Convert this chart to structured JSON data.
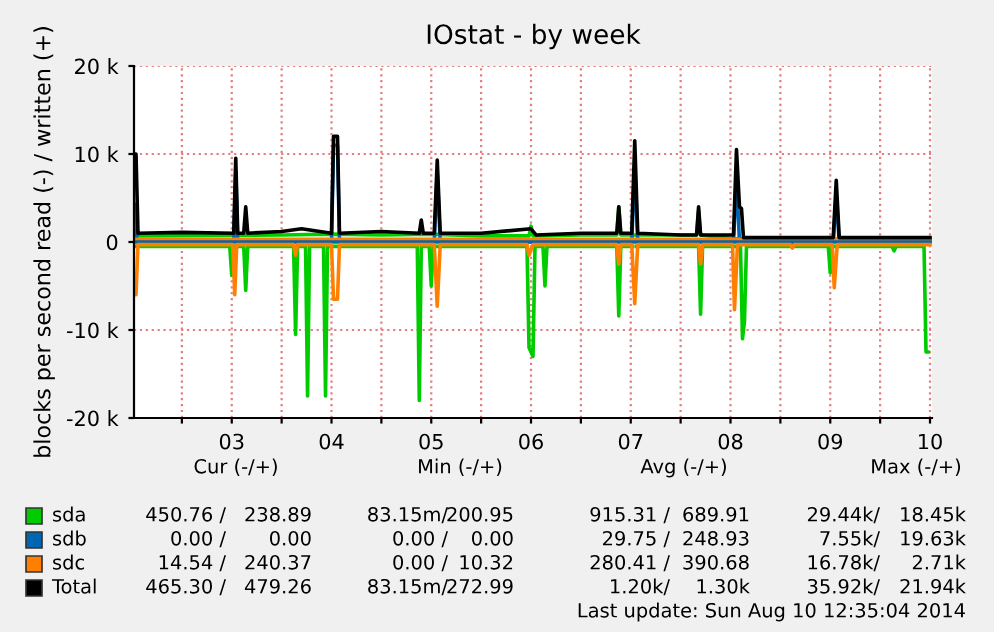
{
  "chart_data": {
    "type": "line",
    "title": "IOstat - by week",
    "ylabel": "blocks per second read (-) / written (+)",
    "xlim": [
      2.52,
      10.52
    ],
    "ylim": [
      -20000,
      20000
    ],
    "xticks": [
      {
        "value": 3,
        "label": null
      },
      {
        "value": 3.5,
        "label": "03"
      },
      {
        "value": 4,
        "label": null
      },
      {
        "value": 4.5,
        "label": "04"
      },
      {
        "value": 5,
        "label": null
      },
      {
        "value": 5.5,
        "label": "05"
      },
      {
        "value": 6,
        "label": null
      },
      {
        "value": 6.5,
        "label": "06"
      },
      {
        "value": 7,
        "label": null
      },
      {
        "value": 7.5,
        "label": "07"
      },
      {
        "value": 8,
        "label": null
      },
      {
        "value": 8.5,
        "label": "08"
      },
      {
        "value": 9,
        "label": null
      },
      {
        "value": 9.5,
        "label": "09"
      },
      {
        "value": 10,
        "label": null
      },
      {
        "value": 10.5,
        "label": "10"
      }
    ],
    "yticks": [
      {
        "value": -20000,
        "label": "-20 k"
      },
      {
        "value": -10000,
        "label": "-10 k"
      },
      0,
      {
        "value": 10000,
        "label": "10 k"
      },
      {
        "value": 20000,
        "label": "20 k"
      }
    ],
    "grid": true,
    "legend": "bottom",
    "series": [
      {
        "name": "sda",
        "color": "#00cc00",
        "x": [
          2.52,
          4.0,
          4.5,
          5.0,
          5.5,
          6.0,
          6.48,
          6.5,
          6.52,
          7.0,
          7.36,
          7.38,
          7.4,
          8.0,
          8.16,
          8.18,
          8.2,
          8.5,
          9.0,
          9.5,
          10.0,
          10.5
        ],
        "values": [
          700,
          800,
          900,
          800,
          900,
          700,
          700,
          1800,
          700,
          800,
          800,
          4000,
          800,
          800,
          800,
          3500,
          800,
          400,
          300,
          300,
          300,
          300
        ]
      },
      {
        "name": "sdb",
        "color": "#0066b3",
        "x": [
          2.52,
          2.53,
          2.55,
          3.52,
          3.54,
          3.56,
          4.5,
          4.52,
          4.56,
          4.58,
          5.53,
          5.56,
          5.59,
          7.51,
          7.54,
          7.57,
          8.53,
          8.56,
          8.59,
          9.53,
          9.56,
          9.59,
          10.5
        ],
        "values": [
          4300,
          4300,
          0,
          0,
          8000,
          0,
          0,
          11000,
          11000,
          0,
          0,
          8000,
          0,
          0,
          9000,
          0,
          0,
          7500,
          0,
          0,
          5500,
          0,
          0
        ]
      },
      {
        "name": "sdc",
        "color": "#ff8000",
        "x": [
          2.52,
          10.5
        ],
        "values": [
          300,
          300
        ]
      },
      {
        "name": "Total",
        "color": "#000000",
        "x": [
          2.52,
          2.54,
          2.56,
          3.0,
          3.52,
          3.54,
          3.56,
          3.62,
          3.64,
          3.66,
          4.0,
          4.2,
          4.5,
          4.52,
          4.56,
          4.58,
          5.0,
          5.38,
          5.4,
          5.42,
          5.53,
          5.56,
          5.59,
          6.0,
          6.5,
          6.55,
          7.0,
          7.36,
          7.38,
          7.4,
          7.51,
          7.54,
          7.57,
          8.0,
          8.16,
          8.18,
          8.2,
          8.53,
          8.56,
          8.59,
          8.61,
          8.63,
          9.0,
          9.53,
          9.56,
          9.59,
          10.0,
          10.5
        ],
        "values": [
          10000,
          10000,
          1000,
          1100,
          1000,
          9500,
          1000,
          1000,
          4000,
          1000,
          1200,
          1500,
          1000,
          12000,
          12000,
          1000,
          1200,
          1000,
          2500,
          1000,
          1000,
          9300,
          1000,
          1000,
          1500,
          800,
          1000,
          1000,
          4000,
          1000,
          1000,
          11500,
          1000,
          800,
          800,
          4000,
          800,
          800,
          10500,
          4000,
          3800,
          500,
          500,
          500,
          7000,
          500,
          500,
          500
        ]
      },
      {
        "color": "#00cc00",
        "x": [
          2.52,
          3.48,
          3.5,
          3.52,
          3.62,
          3.64,
          3.66,
          4.12,
          4.14,
          4.16,
          4.24,
          4.26,
          4.28,
          4.42,
          4.44,
          4.46,
          5.36,
          5.38,
          5.4,
          5.48,
          5.5,
          5.52,
          6.46,
          6.48,
          6.52,
          6.54,
          6.62,
          6.64,
          6.66,
          7.36,
          7.38,
          7.4,
          7.52,
          7.54,
          7.56,
          8.18,
          8.2,
          8.22,
          8.6,
          8.62,
          8.64,
          8.66,
          9.48,
          9.5,
          9.52,
          10.12,
          10.14,
          10.16,
          10.44,
          10.46,
          10.48
        ],
        "values": [
          -500,
          -500,
          -3800,
          -500,
          -500,
          -5500,
          -500,
          -500,
          -10500,
          -500,
          -500,
          -17500,
          -500,
          -500,
          -17500,
          -500,
          -500,
          -18000,
          -500,
          -500,
          -5000,
          -500,
          -500,
          -12000,
          -13000,
          -500,
          -500,
          -5000,
          -500,
          -500,
          -8400,
          -500,
          -500,
          null,
          -500,
          -500,
          -8200,
          -500,
          -500,
          -11000,
          -9000,
          -500,
          -500,
          -3500,
          -500,
          -500,
          -1000,
          -500,
          -500,
          -12500,
          -12500
        ]
      },
      {
        "color": "#0066b3",
        "x": [
          2.52,
          10.5
        ],
        "values": [
          0,
          0
        ]
      },
      {
        "color": "#ff8000",
        "x": [
          2.52,
          2.54,
          2.56,
          3.51,
          3.53,
          3.55,
          4.12,
          4.14,
          4.16,
          4.5,
          4.52,
          4.56,
          4.58,
          5.53,
          5.56,
          5.59,
          6.46,
          6.48,
          6.52,
          7.36,
          7.38,
          7.4,
          7.51,
          7.54,
          7.57,
          8.18,
          8.2,
          8.22,
          8.52,
          8.54,
          8.57,
          9.1,
          9.12,
          9.14,
          9.52,
          9.54,
          9.57,
          10.5
        ],
        "values": [
          -6000,
          -6000,
          -300,
          -300,
          -6000,
          -300,
          -300,
          -1500,
          -300,
          -300,
          -6500,
          -6500,
          -300,
          -300,
          -7300,
          -300,
          -300,
          -1500,
          -300,
          -300,
          -2500,
          -300,
          -300,
          -7000,
          -300,
          -300,
          -2500,
          -300,
          -300,
          -7700,
          -300,
          -300,
          -700,
          -300,
          -300,
          -5200,
          -300,
          -300
        ]
      }
    ],
    "annotations": [
      "Cur (-/+)",
      "Min (-/+)",
      "Avg (-/+)",
      "Max (-/+)",
      "450.76 /",
      "238.89",
      "83.15m/",
      "200.95",
      "915.31 /",
      "689.91",
      "29.44k/",
      "18.45k",
      "0.00 /",
      "0.00",
      "0.00 /",
      "0.00",
      "29.75 /",
      "248.93",
      "7.55k/",
      "19.63k",
      "14.54 /",
      "240.37",
      "0.00 /",
      "10.32",
      "280.41 /",
      "390.68",
      "16.78k/",
      "2.71k",
      "465.30 /",
      "479.26",
      "83.15m/",
      "272.99",
      "1.20k/",
      "1.30k",
      "35.92k/",
      "21.94k",
      "Last update: Sun Aug 10 12:35:04 2014"
    ]
  }
}
